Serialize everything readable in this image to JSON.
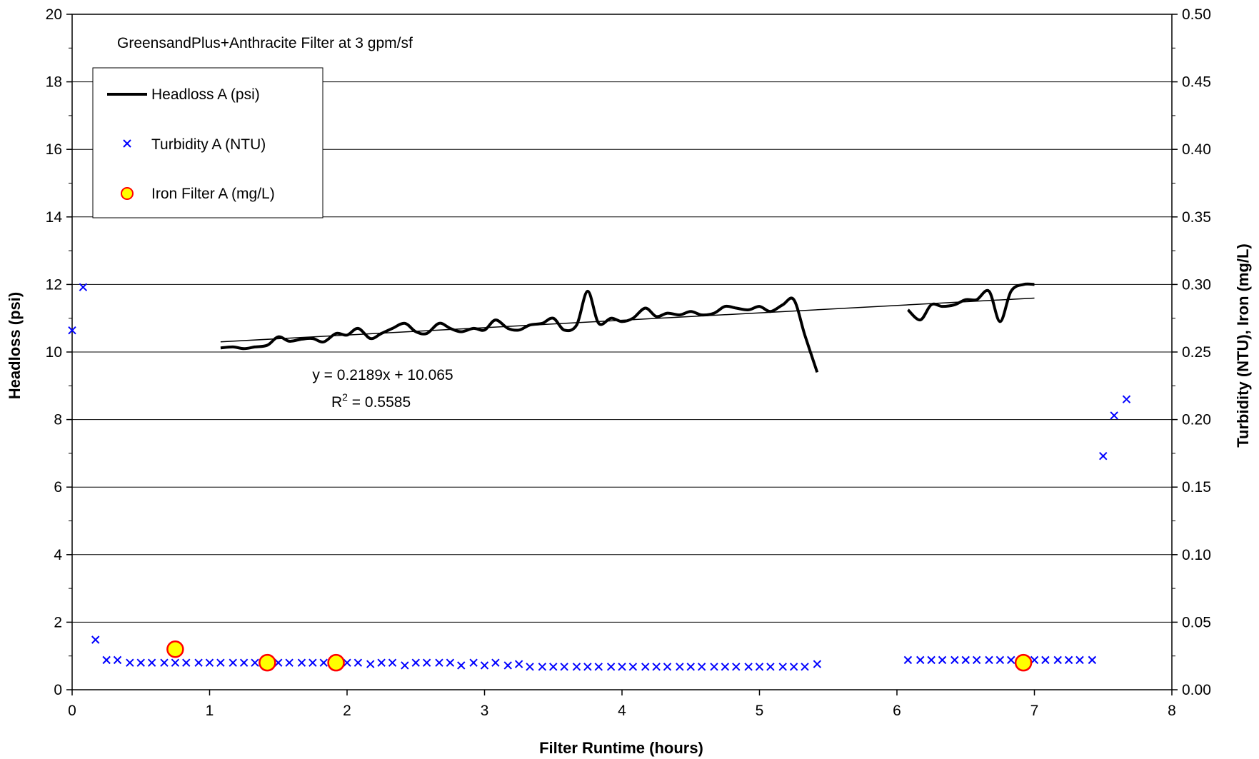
{
  "chart_data": {
    "type": "line",
    "title": "GreensandPlus+Anthracite Filter at 3 gpm/sf",
    "xlabel": "Filter Runtime (hours)",
    "ylabel": "Headloss (psi)",
    "y2label": "Turbidity (NTU), Iron (mg/L)",
    "xlim": [
      0,
      8
    ],
    "ylim": [
      0,
      20
    ],
    "y2lim": [
      0,
      0.5
    ],
    "x_ticks": [
      "0",
      "1",
      "2",
      "3",
      "4",
      "5",
      "6",
      "7",
      "8"
    ],
    "y_ticks": [
      "0",
      "2",
      "4",
      "6",
      "8",
      "10",
      "12",
      "14",
      "16",
      "18",
      "20"
    ],
    "y2_ticks": [
      "0.00",
      "0.05",
      "0.10",
      "0.15",
      "0.20",
      "0.25",
      "0.30",
      "0.35",
      "0.40",
      "0.45",
      "0.50"
    ],
    "grid": true,
    "legend_position": "top-left",
    "trendline": {
      "equation": "y = 0.2189x + 10.065",
      "r2_prefix": "R",
      "r2_sup": "2",
      "r2_value": " = 0.5585",
      "slope": 0.2189,
      "intercept": 10.065,
      "x_range": [
        1.08,
        7.0
      ]
    },
    "series": [
      {
        "name": "Headloss A (psi)",
        "axis": "left",
        "style": "line",
        "color": "#000000",
        "segments": [
          [
            [
              1.08,
              10.12
            ],
            [
              1.17,
              10.15
            ],
            [
              1.25,
              10.1
            ],
            [
              1.33,
              10.15
            ],
            [
              1.42,
              10.2
            ],
            [
              1.5,
              10.45
            ],
            [
              1.58,
              10.32
            ],
            [
              1.67,
              10.38
            ],
            [
              1.75,
              10.4
            ],
            [
              1.83,
              10.3
            ],
            [
              1.92,
              10.55
            ],
            [
              2.0,
              10.5
            ],
            [
              2.08,
              10.7
            ],
            [
              2.17,
              10.4
            ],
            [
              2.25,
              10.55
            ],
            [
              2.33,
              10.7
            ],
            [
              2.42,
              10.85
            ],
            [
              2.5,
              10.6
            ],
            [
              2.58,
              10.55
            ],
            [
              2.67,
              10.85
            ],
            [
              2.75,
              10.7
            ],
            [
              2.83,
              10.6
            ],
            [
              2.92,
              10.7
            ],
            [
              3.0,
              10.65
            ],
            [
              3.08,
              10.95
            ],
            [
              3.17,
              10.7
            ],
            [
              3.25,
              10.65
            ],
            [
              3.33,
              10.8
            ],
            [
              3.42,
              10.85
            ],
            [
              3.5,
              11.0
            ],
            [
              3.58,
              10.65
            ],
            [
              3.67,
              10.8
            ],
            [
              3.75,
              11.8
            ],
            [
              3.83,
              10.85
            ],
            [
              3.92,
              11.0
            ],
            [
              4.0,
              10.9
            ],
            [
              4.08,
              11.0
            ],
            [
              4.17,
              11.3
            ],
            [
              4.25,
              11.05
            ],
            [
              4.33,
              11.15
            ],
            [
              4.42,
              11.1
            ],
            [
              4.5,
              11.2
            ],
            [
              4.58,
              11.1
            ],
            [
              4.67,
              11.15
            ],
            [
              4.75,
              11.35
            ],
            [
              4.83,
              11.3
            ],
            [
              4.92,
              11.25
            ],
            [
              5.0,
              11.35
            ],
            [
              5.08,
              11.2
            ],
            [
              5.17,
              11.4
            ],
            [
              5.25,
              11.55
            ],
            [
              5.33,
              10.5
            ],
            [
              5.42,
              9.4
            ]
          ],
          [
            [
              6.08,
              11.25
            ],
            [
              6.17,
              10.95
            ],
            [
              6.25,
              11.4
            ],
            [
              6.33,
              11.35
            ],
            [
              6.42,
              11.4
            ],
            [
              6.5,
              11.55
            ],
            [
              6.58,
              11.55
            ],
            [
              6.67,
              11.8
            ],
            [
              6.75,
              10.9
            ],
            [
              6.83,
              11.8
            ],
            [
              6.92,
              12.0
            ],
            [
              7.0,
              12.0
            ]
          ]
        ]
      },
      {
        "name": "Turbidity A (NTU)",
        "axis": "right",
        "style": "marker-x",
        "color": "#0000ff",
        "points": [
          [
            0.0,
            0.266
          ],
          [
            0.08,
            0.298
          ],
          [
            0.17,
            0.037
          ],
          [
            0.25,
            0.022
          ],
          [
            0.33,
            0.022
          ],
          [
            0.42,
            0.02
          ],
          [
            0.5,
            0.02
          ],
          [
            0.58,
            0.02
          ],
          [
            0.67,
            0.02
          ],
          [
            0.75,
            0.02
          ],
          [
            0.83,
            0.02
          ],
          [
            0.92,
            0.02
          ],
          [
            1.0,
            0.02
          ],
          [
            1.08,
            0.02
          ],
          [
            1.17,
            0.02
          ],
          [
            1.25,
            0.02
          ],
          [
            1.33,
            0.02
          ],
          [
            1.42,
            0.02
          ],
          [
            1.5,
            0.02
          ],
          [
            1.58,
            0.02
          ],
          [
            1.67,
            0.02
          ],
          [
            1.75,
            0.02
          ],
          [
            1.83,
            0.02
          ],
          [
            1.92,
            0.02
          ],
          [
            2.0,
            0.02
          ],
          [
            2.08,
            0.02
          ],
          [
            2.17,
            0.019
          ],
          [
            2.25,
            0.02
          ],
          [
            2.33,
            0.02
          ],
          [
            2.42,
            0.018
          ],
          [
            2.5,
            0.02
          ],
          [
            2.58,
            0.02
          ],
          [
            2.67,
            0.02
          ],
          [
            2.75,
            0.02
          ],
          [
            2.83,
            0.018
          ],
          [
            2.92,
            0.02
          ],
          [
            3.0,
            0.018
          ],
          [
            3.08,
            0.02
          ],
          [
            3.17,
            0.018
          ],
          [
            3.25,
            0.019
          ],
          [
            3.33,
            0.017
          ],
          [
            3.42,
            0.017
          ],
          [
            3.5,
            0.017
          ],
          [
            3.58,
            0.017
          ],
          [
            3.67,
            0.017
          ],
          [
            3.75,
            0.017
          ],
          [
            3.83,
            0.017
          ],
          [
            3.92,
            0.017
          ],
          [
            4.0,
            0.017
          ],
          [
            4.08,
            0.017
          ],
          [
            4.17,
            0.017
          ],
          [
            4.25,
            0.017
          ],
          [
            4.33,
            0.017
          ],
          [
            4.42,
            0.017
          ],
          [
            4.5,
            0.017
          ],
          [
            4.58,
            0.017
          ],
          [
            4.67,
            0.017
          ],
          [
            4.75,
            0.017
          ],
          [
            4.83,
            0.017
          ],
          [
            4.92,
            0.017
          ],
          [
            5.0,
            0.017
          ],
          [
            5.08,
            0.017
          ],
          [
            5.17,
            0.017
          ],
          [
            5.25,
            0.017
          ],
          [
            5.33,
            0.017
          ],
          [
            5.42,
            0.019
          ],
          [
            6.08,
            0.022
          ],
          [
            6.17,
            0.022
          ],
          [
            6.25,
            0.022
          ],
          [
            6.33,
            0.022
          ],
          [
            6.42,
            0.022
          ],
          [
            6.5,
            0.022
          ],
          [
            6.58,
            0.022
          ],
          [
            6.67,
            0.022
          ],
          [
            6.75,
            0.022
          ],
          [
            6.83,
            0.022
          ],
          [
            6.92,
            0.022
          ],
          [
            7.0,
            0.022
          ],
          [
            7.08,
            0.022
          ],
          [
            7.17,
            0.022
          ],
          [
            7.25,
            0.022
          ],
          [
            7.33,
            0.022
          ],
          [
            7.42,
            0.022
          ],
          [
            7.5,
            0.173
          ],
          [
            7.58,
            0.203
          ],
          [
            7.67,
            0.215
          ]
        ]
      },
      {
        "name": "Iron Filter A (mg/L)",
        "axis": "right",
        "style": "marker-circle",
        "color": "#ffff00",
        "edge_color": "#ff0000",
        "points": [
          [
            0.75,
            0.03
          ],
          [
            1.42,
            0.02
          ],
          [
            1.92,
            0.02
          ],
          [
            6.92,
            0.02
          ]
        ]
      }
    ]
  }
}
